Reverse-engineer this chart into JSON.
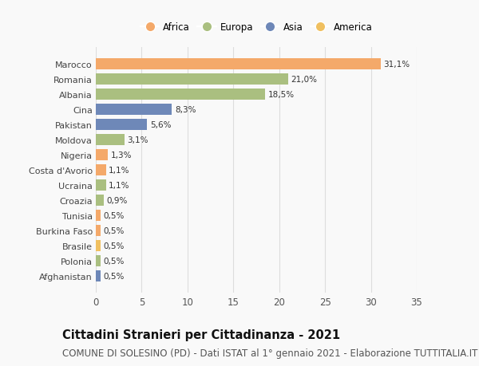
{
  "countries": [
    "Marocco",
    "Romania",
    "Albania",
    "Cina",
    "Pakistan",
    "Moldova",
    "Nigeria",
    "Costa d'Avorio",
    "Ucraina",
    "Croazia",
    "Tunisia",
    "Burkina Faso",
    "Brasile",
    "Polonia",
    "Afghanistan"
  ],
  "values": [
    31.1,
    21.0,
    18.5,
    8.3,
    5.6,
    3.1,
    1.3,
    1.1,
    1.1,
    0.9,
    0.5,
    0.5,
    0.5,
    0.5,
    0.5
  ],
  "labels": [
    "31,1%",
    "21,0%",
    "18,5%",
    "8,3%",
    "5,6%",
    "3,1%",
    "1,3%",
    "1,1%",
    "1,1%",
    "0,9%",
    "0,5%",
    "0,5%",
    "0,5%",
    "0,5%",
    "0,5%"
  ],
  "continents": [
    "Africa",
    "Europa",
    "Europa",
    "Asia",
    "Asia",
    "Europa",
    "Africa",
    "Africa",
    "Europa",
    "Europa",
    "Africa",
    "Africa",
    "America",
    "Europa",
    "Asia"
  ],
  "continent_colors": {
    "Africa": "#F4A96A",
    "Europa": "#AABF80",
    "Asia": "#6E88B8",
    "America": "#F0C060"
  },
  "legend_order": [
    "Africa",
    "Europa",
    "Asia",
    "America"
  ],
  "title": "Cittadini Stranieri per Cittadinanza - 2021",
  "subtitle": "COMUNE DI SOLESINO (PD) - Dati ISTAT al 1° gennaio 2021 - Elaborazione TUTTITALIA.IT",
  "xlim": [
    0,
    35
  ],
  "xticks": [
    0,
    5,
    10,
    15,
    20,
    25,
    30,
    35
  ],
  "background_color": "#f9f9f9",
  "grid_color": "#dddddd",
  "title_fontsize": 10.5,
  "subtitle_fontsize": 8.5,
  "bar_height": 0.72
}
